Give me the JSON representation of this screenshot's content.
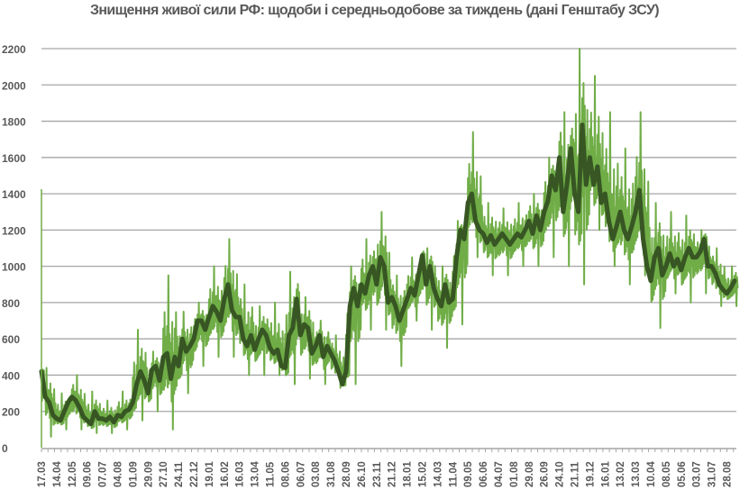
{
  "chart_data": {
    "type": "line",
    "title": "Знищення живої сили РФ: щодоби і середньодобове за тиждень (дані Генштабу ЗСУ)",
    "xlabel": "",
    "ylabel": "",
    "ylim": [
      0,
      2200
    ],
    "yticks": [
      0,
      200,
      400,
      600,
      800,
      1000,
      1200,
      1400,
      1600,
      1800,
      2000,
      2200
    ],
    "grid": true,
    "legend": "none",
    "colors": {
      "daily": "#70ad47",
      "weekly_avg": "#375623",
      "grid": "#a6a6a6",
      "text": "#595959"
    },
    "periods": [
      {
        "label": "17.03",
        "weekly_avg": [
          420,
          280,
          250,
          180
        ],
        "daily_min": 60,
        "daily_max": 440
      },
      {
        "label": "14.04",
        "weekly_avg": [
          160,
          150,
          200,
          250
        ],
        "daily_min": 100,
        "daily_max": 300
      },
      {
        "label": "12.05",
        "weekly_avg": [
          280,
          260,
          220,
          170
        ],
        "daily_min": 100,
        "daily_max": 400
      },
      {
        "label": "09.06",
        "weekly_avg": [
          150,
          130,
          200,
          160
        ],
        "daily_min": 80,
        "daily_max": 310
      },
      {
        "label": "07.07",
        "weekly_avg": [
          160,
          150,
          170,
          140
        ],
        "daily_min": 80,
        "daily_max": 260
      },
      {
        "label": "04.08",
        "weekly_avg": [
          180,
          170,
          200,
          210
        ],
        "daily_min": 100,
        "daily_max": 310
      },
      {
        "label": "01.09",
        "weekly_avg": [
          250,
          350,
          420,
          370
        ],
        "daily_min": 150,
        "daily_max": 650
      },
      {
        "label": "29.09",
        "weekly_avg": [
          300,
          430,
          450,
          370
        ],
        "daily_min": 200,
        "daily_max": 530
      },
      {
        "label": "27.10",
        "weekly_avg": [
          500,
          520,
          380,
          500
        ],
        "daily_min": 100,
        "daily_max": 950
      },
      {
        "label": "24.11",
        "weekly_avg": [
          450,
          600,
          530,
          560
        ],
        "daily_min": 300,
        "daily_max": 750
      },
      {
        "label": "22.12",
        "weekly_avg": [
          600,
          700,
          700,
          650
        ],
        "daily_min": 450,
        "daily_max": 800
      },
      {
        "label": "19.01",
        "weekly_avg": [
          720,
          780,
          750,
          700
        ],
        "daily_min": 500,
        "daily_max": 1000
      },
      {
        "label": "16.02",
        "weekly_avg": [
          820,
          900,
          760,
          720
        ],
        "daily_min": 500,
        "daily_max": 1150
      },
      {
        "label": "16.03",
        "weekly_avg": [
          720,
          600,
          560,
          620
        ],
        "daily_min": 400,
        "daily_max": 900
      },
      {
        "label": "13.04",
        "weekly_avg": [
          540,
          600,
          650,
          620
        ],
        "daily_min": 400,
        "daily_max": 780
      },
      {
        "label": "11.05",
        "weekly_avg": [
          550,
          520,
          540,
          450
        ],
        "daily_min": 400,
        "daily_max": 800
      },
      {
        "label": "08.06",
        "weekly_avg": [
          440,
          620,
          660,
          820
        ],
        "daily_min": 350,
        "daily_max": 970
      },
      {
        "label": "06.07",
        "weekly_avg": [
          620,
          680,
          660,
          520
        ],
        "daily_min": 380,
        "daily_max": 830
      },
      {
        "label": "03.08",
        "weekly_avg": [
          560,
          620,
          500,
          560
        ],
        "daily_min": 350,
        "daily_max": 700
      },
      {
        "label": "31.08",
        "weekly_avg": [
          520,
          480,
          420,
          350
        ],
        "daily_min": 330,
        "daily_max": 620
      },
      {
        "label": "28.09",
        "weekly_avg": [
          420,
          780,
          880,
          780
        ],
        "daily_min": 350,
        "daily_max": 1000
      },
      {
        "label": "26.10",
        "weekly_avg": [
          900,
          850,
          950,
          1000
        ],
        "daily_min": 650,
        "daily_max": 1150
      },
      {
        "label": "23.11",
        "weekly_avg": [
          900,
          1050,
          1000,
          800
        ],
        "daily_min": 650,
        "daily_max": 1300
      },
      {
        "label": "21.12",
        "weekly_avg": [
          830,
          780,
          700,
          760
        ],
        "daily_min": 450,
        "daily_max": 950
      },
      {
        "label": "18.01",
        "weekly_avg": [
          820,
          880,
          840,
          950
        ],
        "daily_min": 700,
        "daily_max": 1050
      },
      {
        "label": "15.02",
        "weekly_avg": [
          1060,
          900,
          1000,
          880
        ],
        "daily_min": 650,
        "daily_max": 1100
      },
      {
        "label": "14.03",
        "weekly_avg": [
          820,
          780,
          900,
          800
        ],
        "daily_min": 550,
        "daily_max": 1000
      },
      {
        "label": "11.04",
        "weekly_avg": [
          820,
          1050,
          1200,
          1150
        ],
        "daily_min": 680,
        "daily_max": 1250
      },
      {
        "label": "09.05",
        "weekly_avg": [
          1350,
          1400,
          1250,
          1200
        ],
        "daily_min": 1050,
        "daily_max": 1740
      },
      {
        "label": "06.06",
        "weekly_avg": [
          1180,
          1130,
          1170,
          1120
        ],
        "daily_min": 950,
        "daily_max": 1350
      },
      {
        "label": "04.07",
        "weekly_avg": [
          1150,
          1180,
          1150,
          1120
        ],
        "daily_min": 950,
        "daily_max": 1320
      },
      {
        "label": "01.08",
        "weekly_avg": [
          1150,
          1180,
          1160,
          1200
        ],
        "daily_min": 1000,
        "daily_max": 1350
      },
      {
        "label": "29.08",
        "weekly_avg": [
          1250,
          1180,
          1280,
          1200
        ],
        "daily_min": 1000,
        "daily_max": 1400
      },
      {
        "label": "26.09",
        "weekly_avg": [
          1300,
          1360,
          1500,
          1420
        ],
        "daily_min": 1050,
        "daily_max": 1600
      },
      {
        "label": "24.10",
        "weekly_avg": [
          1600,
          1300,
          1450,
          1650
        ],
        "daily_min": 1000,
        "daily_max": 1850
      },
      {
        "label": "21.11",
        "weekly_avg": [
          1400,
          1300,
          1780,
          1450
        ],
        "daily_min": 900,
        "daily_max": 2200
      },
      {
        "label": "19.12",
        "weekly_avg": [
          1600,
          1450,
          1550,
          1350
        ],
        "daily_min": 1200,
        "daily_max": 2050
      },
      {
        "label": "16.01",
        "weekly_avg": [
          1400,
          1250,
          1150,
          1220
        ],
        "daily_min": 1000,
        "daily_max": 1850
      },
      {
        "label": "13.02",
        "weekly_avg": [
          1300,
          1200,
          1150,
          1220
        ],
        "daily_min": 900,
        "daily_max": 1650
      },
      {
        "label": "13.03",
        "weekly_avg": [
          1300,
          1420,
          1150,
          1000
        ],
        "daily_min": 950,
        "daily_max": 1850
      },
      {
        "label": "10.04",
        "weekly_avg": [
          920,
          1050,
          1100,
          950
        ],
        "daily_min": 660,
        "daily_max": 1350
      },
      {
        "label": "08.05",
        "weekly_avg": [
          1000,
          1070,
          1000,
          1040
        ],
        "daily_min": 850,
        "daily_max": 1300
      },
      {
        "label": "05.06",
        "weekly_avg": [
          980,
          1050,
          1100,
          1050
        ],
        "daily_min": 800,
        "daily_max": 1280
      },
      {
        "label": "03.07",
        "weekly_avg": [
          1050,
          1080,
          1150,
          1000
        ],
        "daily_min": 850,
        "daily_max": 1200
      },
      {
        "label": "31.07",
        "weekly_avg": [
          1000,
          960,
          900,
          870
        ],
        "daily_min": 780,
        "daily_max": 1100
      },
      {
        "label": "28.08",
        "weekly_avg": [
          850,
          880,
          920
        ],
        "daily_min": 780,
        "daily_max": 1000
      }
    ]
  }
}
